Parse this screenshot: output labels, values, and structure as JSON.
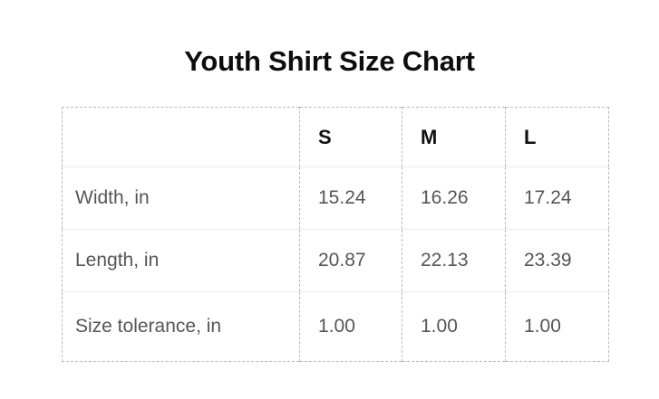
{
  "page": {
    "background_color": "#ffffff"
  },
  "chart_data": {
    "type": "table",
    "title": "Youth Shirt Size Chart",
    "columns": [
      "",
      "S",
      "M",
      "L"
    ],
    "rows": [
      {
        "label": "Width, in",
        "values": [
          "15.24",
          "16.26",
          "17.24"
        ]
      },
      {
        "label": "Length, in",
        "values": [
          "20.87",
          "22.13",
          "23.39"
        ]
      },
      {
        "label": "Size tolerance, in",
        "values": [
          "1.00",
          "1.00",
          "1.00"
        ]
      }
    ],
    "layout_hints": {
      "outer_border": "dashed",
      "column_separators": "dashed",
      "row_separators": "solid-light",
      "header_bold": true
    }
  },
  "colors": {
    "title_text": "#0c0d0e",
    "header_text": "#101114",
    "cell_text": "#54565a",
    "dashed_border": "#b9b9b9",
    "row_line": "#ececec"
  }
}
